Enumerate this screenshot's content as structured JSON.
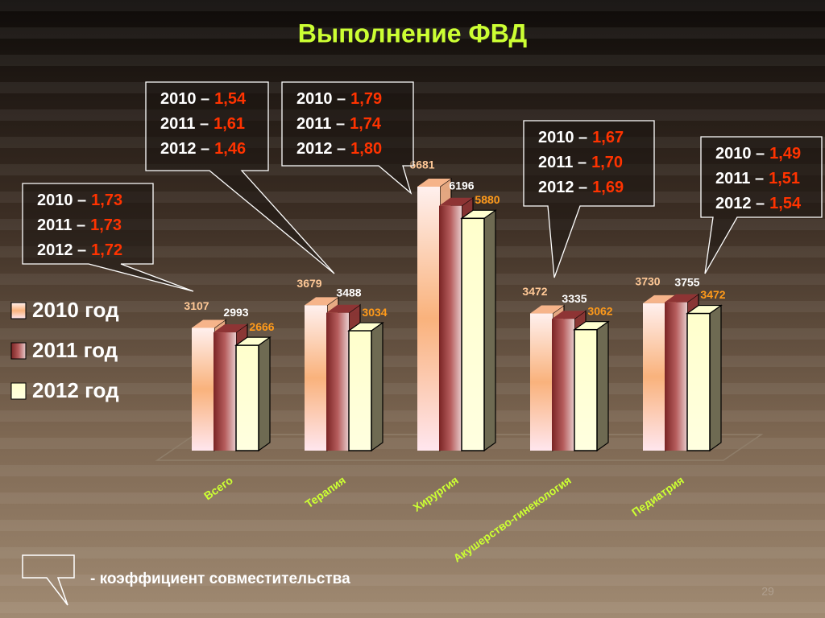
{
  "chart_data": {
    "type": "bar3d",
    "title": "Выполнение ФВД",
    "categories": [
      "Всего",
      "Терапия",
      "Хирургия",
      "Акушерство-гинекология",
      "Педиатрия"
    ],
    "series": [
      {
        "name": "2010 год",
        "color": "#f6b48a",
        "label_color": "#ffc896",
        "values": [
          3107,
          3679,
          6681,
          3472,
          3730
        ]
      },
      {
        "name": "2011 год",
        "color": "#8e3434",
        "label_color": "#ffffff",
        "values": [
          2993,
          3488,
          6196,
          3335,
          3755
        ]
      },
      {
        "name": "2012 год",
        "color": "#ffffd0",
        "label_color": "#ff9a1a",
        "values": [
          2666,
          3034,
          5880,
          3062,
          3472
        ]
      }
    ],
    "callouts": [
      [
        {
          "year": "2010 –",
          "value": "1,73"
        },
        {
          "year": "2011 –",
          "value": "1,73"
        },
        {
          "year": "2012 –",
          "value": "1,72"
        }
      ],
      [
        {
          "year": "2010 –",
          "value": "1,54"
        },
        {
          "year": "2011 –",
          "value": "1,61"
        },
        {
          "year": "2012 –",
          "value": "1,46"
        }
      ],
      [
        {
          "year": "2010 –",
          "value": "1,79"
        },
        {
          "year": "2011 –",
          "value": "1,74"
        },
        {
          "year": "2012 –",
          "value": "1,80"
        }
      ],
      [
        {
          "year": "2010 –",
          "value": "1,67"
        },
        {
          "year": "2011 –",
          "value": "1,70"
        },
        {
          "year": "2012 –",
          "value": "1,69"
        }
      ],
      [
        {
          "year": "2010 –",
          "value": "1,49"
        },
        {
          "year": "2011 –",
          "value": "1,51"
        },
        {
          "year": "2012 –",
          "value": "1,54"
        }
      ]
    ],
    "footnote": "- коэффициент совместительства",
    "page_number": "29"
  }
}
